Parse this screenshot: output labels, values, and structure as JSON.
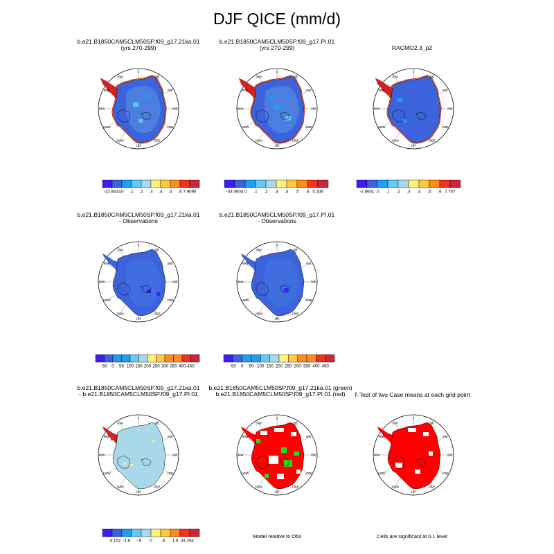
{
  "page": {
    "title": "DJF QICE (mm/d)"
  },
  "colors": {
    "scale": [
      "#3a1ff0",
      "#3d63dc",
      "#1e9ef0",
      "#63c9f5",
      "#a8d8ea",
      "#fff07a",
      "#ffc93a",
      "#ff8c1a",
      "#f0321e",
      "#c8283a"
    ],
    "ice_model_a": "#3d63dc",
    "ice_model_b": "#3d63dc",
    "ice_model_c": "#3d63dc",
    "interior_model_a": "#4a7fe0",
    "interior_model_b": "#4a7fe0",
    "interior_model_c": "#3d63dc",
    "obs": "#3d63dc",
    "obs_interior": "#3f6ee0",
    "diff": "#a8d8ea",
    "sig_red": "#ff0000",
    "sig_green": "#22dd22"
  },
  "meridian_labels": {
    "top": "0",
    "right": "90E",
    "bottom": "180",
    "left": "90W",
    "ur": "30E",
    "ul": "30W",
    "ur2": "60E",
    "ul2": "60W",
    "lr": "120E",
    "ll": "120W",
    "lr2": "150E",
    "ll2": "150W"
  },
  "panels": {
    "p1": {
      "title1": "b.e21.B1850CAM5CLM50SP.f09_g17.21ka.01",
      "title2": "(yrs 270-299)"
    },
    "p2": {
      "title1": "b.e21.B1850CAM5CLM50SP.f09_g17.PI.01",
      "title2": "(yrs 270-299)"
    },
    "p3": {
      "title1": "RACMO2.3_p2",
      "title2": ""
    },
    "p4": {
      "title1": "b.e21.B1850CAM5CLM50SP.f09_g17.21ka.01",
      "title2": "- Observations"
    },
    "p5": {
      "title1": "b.e21.B1850CAM5CLM50SP.f09_g17.PI.01",
      "title2": "- Observations"
    },
    "p6": {
      "title1": "b.e21.B1850CAM5CLM50SP.f09_g17.21ka.01",
      "title2": "- b.e21.B1850CAM5CLM50SP.f09_g17.PI.01"
    },
    "p7": {
      "title1": "b.e21.B1850CAM5CLM50SP.f09_g17.21ka.01 (green)",
      "title2": "b.e21.B1850CAM5CLM50SP.f09_g17.PI.01 (red)"
    },
    "p8": {
      "title1": "T-Test of two Case means at each grid point",
      "title2": ""
    }
  },
  "captions": {
    "c7": "Model relative to Obs",
    "c8": "Cells are significant at 0.1 level"
  },
  "chart_data": [
    {
      "type": "heatmap",
      "panel": "p1",
      "map": "south-polar stereographic",
      "colorbar": [
        "-22.8314",
        ".0",
        ".1",
        ".2",
        ".3",
        ".4",
        ".5",
        ".6",
        "7.9095"
      ]
    },
    {
      "type": "heatmap",
      "panel": "p2",
      "map": "south-polar stereographic",
      "colorbar": [
        "-33.0604",
        ".0",
        ".1",
        ".2",
        ".3",
        ".4",
        ".5",
        ".6",
        "5.106"
      ]
    },
    {
      "type": "heatmap",
      "panel": "p3",
      "map": "south-polar stereographic",
      "colorbar": [
        "-2.8651",
        ".0",
        ".1",
        ".2",
        ".3",
        ".4",
        ".5",
        ".6",
        "7.707"
      ]
    },
    {
      "type": "heatmap",
      "panel": "p4",
      "map": "south-polar stereographic",
      "colorbar": [
        "-50",
        "0",
        "50",
        "100",
        "150",
        "200",
        "250",
        "300",
        "350",
        "400",
        "450"
      ]
    },
    {
      "type": "heatmap",
      "panel": "p5",
      "map": "south-polar stereographic",
      "colorbar": [
        "-50",
        "0",
        "50",
        "100",
        "150",
        "200",
        "250",
        "300",
        "350",
        "400",
        "450"
      ]
    },
    {
      "type": "heatmap",
      "panel": "p6",
      "map": "south-polar stereographic",
      "colorbar": [
        "-3.152",
        "-1.6",
        "-.8",
        "0",
        ".8",
        "1.6",
        "34.264"
      ]
    },
    {
      "type": "heatmap",
      "panel": "p7",
      "map": "south-polar stereographic",
      "legend": "Model relative to Obs"
    },
    {
      "type": "heatmap",
      "panel": "p8",
      "map": "south-polar stereographic",
      "legend": "Cells are significant at 0.1 level"
    }
  ]
}
